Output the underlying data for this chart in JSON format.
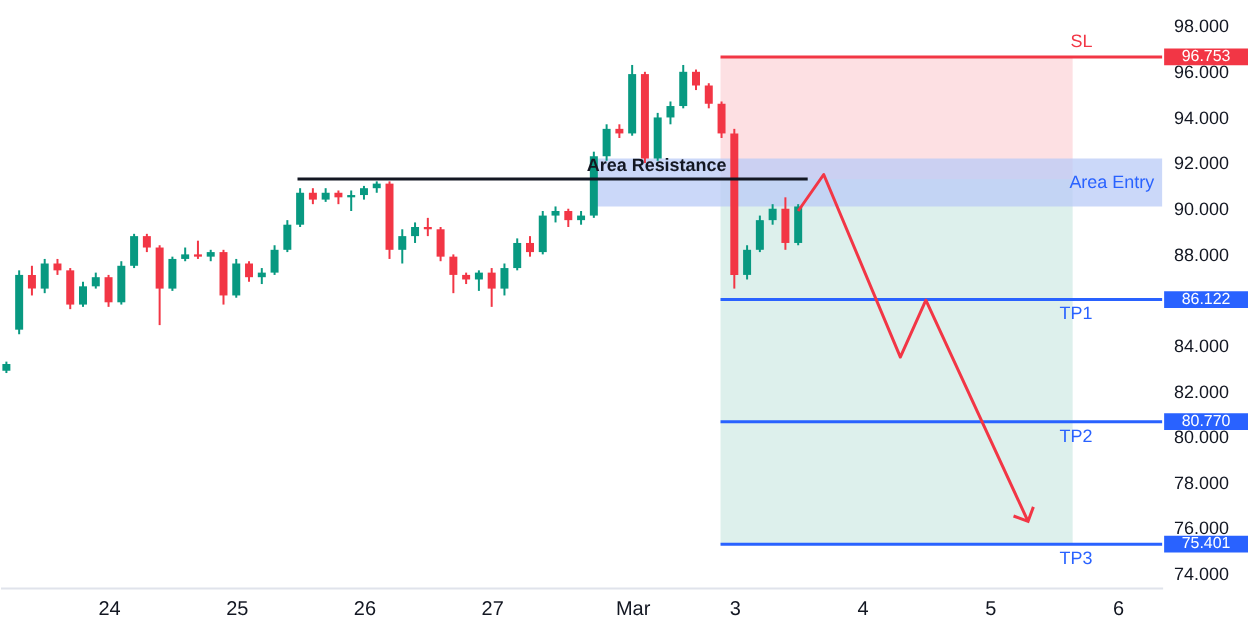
{
  "chart_data": {
    "type": "candlestick",
    "categories": [
      null,
      null,
      null,
      null,
      null,
      null,
      null,
      null,
      "24",
      null,
      null,
      null,
      null,
      null,
      null,
      null,
      null,
      null,
      "25",
      null,
      null,
      null,
      null,
      null,
      null,
      null,
      null,
      null,
      "26",
      null,
      null,
      null,
      null,
      null,
      null,
      null,
      null,
      null,
      "27",
      null,
      null,
      null,
      null,
      null,
      null,
      null,
      null,
      null,
      null,
      "Mar",
      null,
      null,
      null,
      null,
      null,
      null,
      null,
      "3",
      null,
      null,
      null,
      null,
      null,
      null,
      null,
      null,
      null,
      "4",
      null,
      null,
      null,
      null,
      null,
      null,
      null,
      null,
      null,
      "5",
      null,
      null,
      null,
      null,
      null,
      null,
      null,
      null,
      null,
      "6",
      null,
      null,
      null
    ],
    "ohlc": [
      [
        83.0,
        83.4,
        82.9,
        83.3
      ],
      [
        84.8,
        87.4,
        84.6,
        87.2
      ],
      [
        87.2,
        87.6,
        86.3,
        86.6
      ],
      [
        86.6,
        87.9,
        86.4,
        87.7
      ],
      [
        87.7,
        87.9,
        87.2,
        87.4
      ],
      [
        87.4,
        87.5,
        85.7,
        85.9
      ],
      [
        85.9,
        86.9,
        85.8,
        86.7
      ],
      [
        86.7,
        87.3,
        86.6,
        87.1
      ],
      [
        87.1,
        87.2,
        85.8,
        86.0
      ],
      [
        86.0,
        87.8,
        85.9,
        87.6
      ],
      [
        87.6,
        89.0,
        87.5,
        88.9
      ],
      [
        88.9,
        89.0,
        88.2,
        88.4
      ],
      [
        88.4,
        88.5,
        85.0,
        86.6
      ],
      [
        86.6,
        88.0,
        86.5,
        87.9
      ],
      [
        87.9,
        88.4,
        87.8,
        88.1
      ],
      [
        88.1,
        88.7,
        87.9,
        88.0
      ],
      [
        88.0,
        88.3,
        87.8,
        88.2
      ],
      [
        88.2,
        88.3,
        85.9,
        86.3
      ],
      [
        86.3,
        87.9,
        86.2,
        87.7
      ],
      [
        87.7,
        87.8,
        86.9,
        87.1
      ],
      [
        87.1,
        87.5,
        86.8,
        87.3
      ],
      [
        87.3,
        88.5,
        87.2,
        88.3
      ],
      [
        88.3,
        89.6,
        88.2,
        89.4
      ],
      [
        89.4,
        91.0,
        89.3,
        90.8
      ],
      [
        90.8,
        91.0,
        90.3,
        90.5
      ],
      [
        90.5,
        91.0,
        90.4,
        90.8
      ],
      [
        90.8,
        90.9,
        90.3,
        90.6
      ],
      [
        90.6,
        90.9,
        90.0,
        90.7
      ],
      [
        90.7,
        91.1,
        90.5,
        91.0
      ],
      [
        91.0,
        91.3,
        90.8,
        91.2
      ],
      [
        91.2,
        91.3,
        87.9,
        88.3
      ],
      [
        88.3,
        89.2,
        87.7,
        88.9
      ],
      [
        88.9,
        89.5,
        88.6,
        89.3
      ],
      [
        89.3,
        89.7,
        88.9,
        89.2
      ],
      [
        89.2,
        89.3,
        87.8,
        88.0
      ],
      [
        88.0,
        88.1,
        86.4,
        87.2
      ],
      [
        87.2,
        87.3,
        86.8,
        87.0
      ],
      [
        87.0,
        87.4,
        86.5,
        87.3
      ],
      [
        87.3,
        87.5,
        85.8,
        86.6
      ],
      [
        86.6,
        87.7,
        86.3,
        87.5
      ],
      [
        87.5,
        88.8,
        87.4,
        88.6
      ],
      [
        88.6,
        88.9,
        88.0,
        88.2
      ],
      [
        88.2,
        90.0,
        88.1,
        89.8
      ],
      [
        89.8,
        90.2,
        89.5,
        90.0
      ],
      [
        90.0,
        90.1,
        89.3,
        89.6
      ],
      [
        89.6,
        90.0,
        89.4,
        89.8
      ],
      [
        89.8,
        92.6,
        89.7,
        92.4
      ],
      [
        92.4,
        93.8,
        92.2,
        93.6
      ],
      [
        93.6,
        93.8,
        93.2,
        93.4
      ],
      [
        93.4,
        96.4,
        93.3,
        96.0
      ],
      [
        96.0,
        96.1,
        92.1,
        92.3
      ],
      [
        92.3,
        94.3,
        92.2,
        94.1
      ],
      [
        94.1,
        94.8,
        93.8,
        94.6
      ],
      [
        94.6,
        96.4,
        94.5,
        96.1
      ],
      [
        96.1,
        96.2,
        95.3,
        95.5
      ],
      [
        95.5,
        95.6,
        94.5,
        94.7
      ],
      [
        94.7,
        94.8,
        93.2,
        93.4
      ],
      [
        93.4,
        93.6,
        86.6,
        87.2
      ],
      [
        87.2,
        88.5,
        87.0,
        88.3
      ],
      [
        88.3,
        89.8,
        88.2,
        89.6
      ],
      [
        89.6,
        90.3,
        89.4,
        90.1
      ],
      [
        90.1,
        90.6,
        88.3,
        88.6
      ],
      [
        88.6,
        90.3,
        88.5,
        90.2
      ],
      null,
      null,
      null,
      null,
      null,
      null,
      null,
      null,
      null,
      null,
      null,
      null,
      null,
      null,
      null,
      null,
      null,
      null,
      null,
      null,
      null,
      null,
      null,
      null,
      null,
      null,
      null,
      null
    ],
    "colors": [
      "#089981",
      "#089981",
      "#f23645",
      "#089981",
      "#f23645",
      "#f23645",
      "#089981",
      "#089981",
      "#f23645",
      "#089981",
      "#089981",
      "#f23645",
      "#f23645",
      "#089981",
      "#089981",
      "#f23645",
      "#089981",
      "#f23645",
      "#089981",
      "#f23645",
      "#089981",
      "#089981",
      "#089981",
      "#089981",
      "#f23645",
      "#089981",
      "#f23645",
      "#089981",
      "#089981",
      "#089981",
      "#f23645",
      "#089981",
      "#089981",
      "#f23645",
      "#f23645",
      "#f23645",
      "#f23645",
      "#089981",
      "#f23645",
      "#089981",
      "#089981",
      "#f23645",
      "#089981",
      "#089981",
      "#f23645",
      "#089981",
      "#089981",
      "#089981",
      "#f23645",
      "#089981",
      "#f23645",
      "#089981",
      "#089981",
      "#089981",
      "#f23645",
      "#f23645",
      "#f23645",
      "#f23645",
      "#089981",
      "#089981",
      "#089981",
      "#f23645",
      "#089981",
      null,
      null,
      null,
      null,
      null,
      null,
      null,
      null,
      null,
      null,
      null,
      null,
      null,
      null,
      null,
      null,
      null,
      null,
      null,
      null,
      null,
      null,
      null,
      null,
      null,
      null,
      null,
      null
    ],
    "series": [
      {
        "type": "line",
        "color": "#f23645",
        "values": [
          null,
          null,
          null,
          null,
          null,
          null,
          null,
          null,
          null,
          null,
          null,
          null,
          null,
          null,
          null,
          null,
          null,
          null,
          null,
          null,
          null,
          null,
          null,
          null,
          null,
          null,
          null,
          null,
          null,
          null,
          null,
          null,
          null,
          null,
          null,
          null,
          null,
          null,
          null,
          null,
          null,
          null,
          null,
          null,
          null,
          null,
          null,
          null,
          null,
          null,
          null,
          null,
          null,
          null,
          null,
          null,
          null,
          null,
          null,
          null,
          null,
          null,
          90.0,
          null,
          91.6,
          null,
          null,
          null,
          null,
          null,
          83.6,
          null,
          86.1,
          null,
          null,
          null,
          null,
          null,
          null,
          null,
          76.4,
          null,
          null,
          null,
          null,
          null,
          null,
          null,
          null,
          null,
          null
        ]
      }
    ],
    "ylim": [
      73.5,
      98
    ],
    "yticks": [
      {
        "value": 74,
        "label": "74.000"
      },
      {
        "value": 76,
        "label": "76.000"
      },
      {
        "value": 78,
        "label": "78.000"
      },
      {
        "value": 80,
        "label": "80.000"
      },
      {
        "value": 82,
        "label": "82.000"
      },
      {
        "value": 84,
        "label": "84.000"
      },
      {
        "value": 88,
        "label": "88.000"
      },
      {
        "value": 90,
        "label": "90.000"
      },
      {
        "value": 92,
        "label": "92.000"
      },
      {
        "value": 94,
        "label": "94.000"
      },
      {
        "value": 96,
        "label": "96.000"
      },
      {
        "value": 98,
        "label": "98.000"
      }
    ],
    "bands": [
      {
        "axis": "y",
        "from": 96.753,
        "to": 91.4,
        "color": "#fcd6da"
      },
      {
        "axis": "y",
        "from": 91.4,
        "to": 75.401,
        "color": "#d2ebe5"
      },
      {
        "axis": "y",
        "from": 92.3,
        "to": 90.2,
        "label": "Area Entry",
        "color": "#b9cbf7"
      }
    ],
    "ref_lines": [
      {
        "axis": "y",
        "value": 91.4,
        "label": "Area Resistance",
        "color": "#131722"
      },
      {
        "axis": "y",
        "value": 96.753,
        "label": "SL",
        "color": "#f23645"
      },
      {
        "axis": "y",
        "value": 86.122,
        "label": "TP1",
        "color": "#2962ff"
      },
      {
        "axis": "y",
        "value": 80.77,
        "label": "TP2",
        "color": "#2962ff"
      },
      {
        "axis": "y",
        "value": 75.401,
        "label": "TP3",
        "color": "#2962ff"
      }
    ],
    "annotations": [
      "96.753",
      "86.122",
      "80.770",
      "75.401"
    ],
    "grid": false
  }
}
